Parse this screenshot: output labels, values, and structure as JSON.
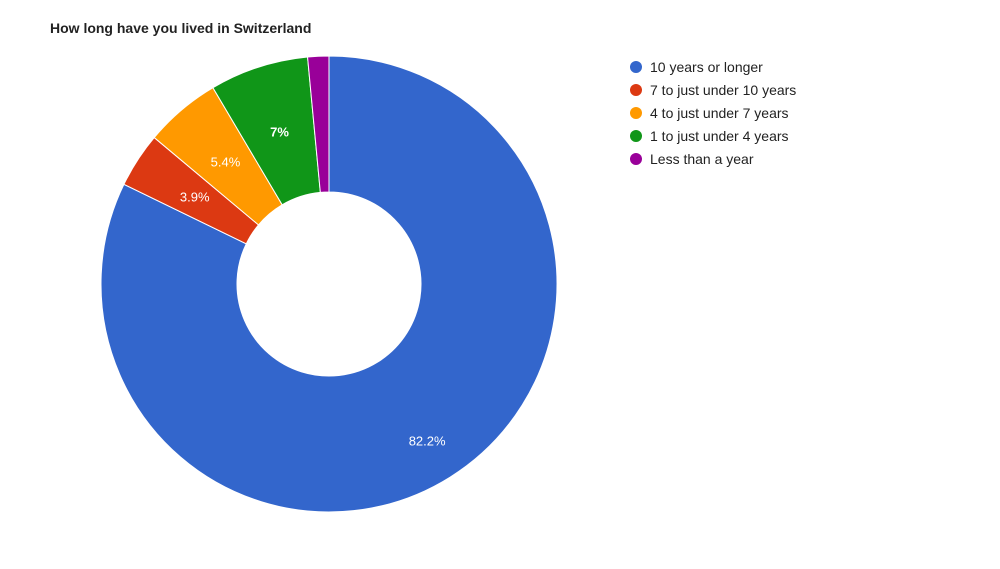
{
  "chart_data": {
    "type": "pie",
    "donut": true,
    "title": "How long have you lived in Switzerland",
    "legend_position": "right",
    "categories": [
      "10 years or longer",
      "7 to just under 10 years",
      "4 to just under 7 years",
      "1 to just under 4 years",
      "Less than a year"
    ],
    "values": [
      82.2,
      3.9,
      5.4,
      7,
      1.5
    ],
    "labels": [
      "82.2%",
      "3.9%",
      "5.4%",
      "7%",
      ""
    ],
    "colors": [
      "#3366cc",
      "#dc3912",
      "#ff9900",
      "#109618",
      "#990099"
    ]
  }
}
